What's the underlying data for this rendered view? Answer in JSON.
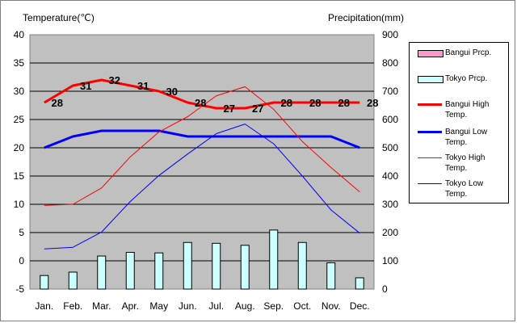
{
  "chart_data": {
    "type": "line",
    "left_axis_title": "Temperature(℃)",
    "right_axis_title": "Precipitation(mm)",
    "categories": [
      "Jan.",
      "Feb.",
      "Mar.",
      "Apr.",
      "May",
      "Jun.",
      "Jul.",
      "Aug.",
      "Sep.",
      "Oct.",
      "Nov.",
      "Dec."
    ],
    "y_left": {
      "min": -5,
      "max": 40,
      "step": 5,
      "ticks": [
        "-5",
        "0",
        "5",
        "10",
        "15",
        "20",
        "25",
        "30",
        "35",
        "40"
      ]
    },
    "y_right": {
      "min": 0,
      "max": 900,
      "step": 100,
      "ticks": [
        "0",
        "100",
        "200",
        "300",
        "400",
        "500",
        "600",
        "700",
        "800",
        "900"
      ]
    },
    "grid": true,
    "legend_position": "right",
    "series": [
      {
        "name": "Bangui Prcp.",
        "kind": "bar",
        "axis": "right",
        "color": "#ff99cc",
        "values": [
          0,
          0,
          0,
          0,
          0,
          0,
          0,
          0,
          0,
          0,
          0,
          0
        ]
      },
      {
        "name": "Tokyo Prcp.",
        "kind": "bar",
        "axis": "right",
        "color": "#ccffff",
        "values": [
          48,
          60,
          117,
          130,
          128,
          165,
          162,
          155,
          209,
          165,
          93,
          40
        ]
      },
      {
        "name": "Bangui High Temp.",
        "kind": "line",
        "axis": "left",
        "color": "#ff0000",
        "width": "thick",
        "values": [
          28,
          31,
          32,
          31,
          30,
          28,
          27,
          27,
          28,
          28,
          28,
          28
        ]
      },
      {
        "name": "Bangui Low Temp.",
        "kind": "line",
        "axis": "left",
        "color": "#0000ff",
        "width": "thick",
        "values": [
          20,
          22,
          23,
          23,
          23,
          22,
          22,
          22,
          22,
          22,
          22,
          20
        ]
      },
      {
        "name": "Tokyo High Temp.",
        "kind": "line",
        "axis": "left",
        "color": "#ff0000",
        "width": "thin",
        "values": [
          9.8,
          10,
          12.9,
          18.4,
          22.8,
          25.5,
          29.2,
          30.8,
          26.8,
          21.1,
          16.5,
          12.2
        ]
      },
      {
        "name": "Tokyo Low Temp.",
        "kind": "line",
        "axis": "left",
        "color": "#0000ff",
        "width": "thin",
        "values": [
          2.1,
          2.4,
          5.1,
          10.5,
          15.1,
          18.9,
          22.5,
          24.2,
          20.7,
          15,
          9,
          4.9
        ]
      }
    ],
    "data_labels": [
      "28",
      "31",
      "32",
      "31",
      "30",
      "28",
      "27",
      "27",
      "28",
      "28",
      "28",
      "28"
    ]
  }
}
